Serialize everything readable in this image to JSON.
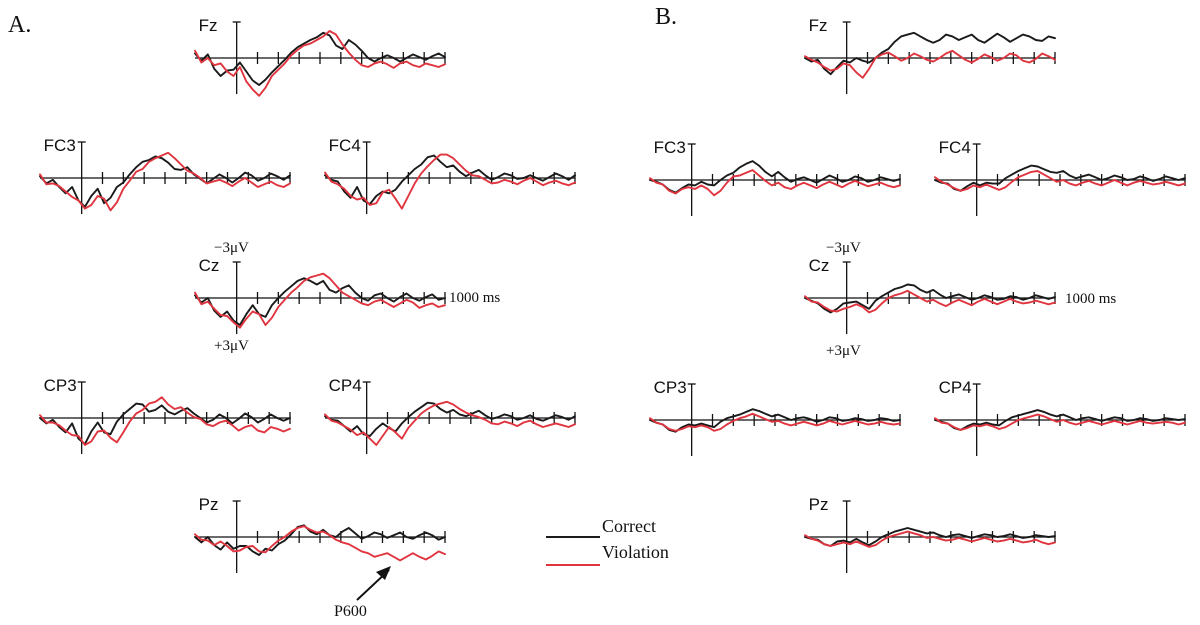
{
  "panels": [
    {
      "id": "A",
      "label": "A."
    },
    {
      "id": "B",
      "label": "B."
    }
  ],
  "scale_labels": {
    "neg": "−3μV",
    "pos": "+3μV",
    "time": "1000 ms"
  },
  "annotation": {
    "label": "P600"
  },
  "legend": {
    "entries": [
      {
        "label": "Correct",
        "color": "#1a1a1a"
      },
      {
        "label": "Violation",
        "color": "#e0353f"
      }
    ]
  },
  "colors": {
    "correct": "#1a1a1a",
    "violation": "#e0353f",
    "axis": "#111111"
  },
  "chart_data": {
    "type": "line",
    "x_unit": "ms",
    "y_unit": "μV",
    "negative_up": true,
    "time_range": [
      -200,
      1000
    ],
    "scale_uV": 3,
    "series_names": [
      "Correct",
      "Violation"
    ],
    "channels": [
      {
        "panel": "A",
        "name": "Fz",
        "correct": [
          -0.5,
          0.3,
          -0.4,
          1.2,
          2.0,
          1.4,
          1.3,
          0.5,
          1.5,
          2.5,
          3.0,
          2.4,
          1.6,
          0.9,
          0.2,
          -0.6,
          -1.2,
          -1.6,
          -2.0,
          -2.3,
          -2.8,
          -2.5,
          -1.4,
          -1.0,
          -2.0,
          -1.5,
          -0.8,
          0.0,
          0.4,
          0.0,
          -0.3,
          0.0,
          0.4,
          0.0,
          -0.4,
          -0.1,
          0.2,
          -0.2,
          -0.5,
          -0.1
        ],
        "violation": [
          -0.8,
          0.5,
          0.0,
          0.8,
          0.6,
          1.5,
          2.0,
          1.0,
          2.6,
          3.5,
          4.2,
          3.3,
          2.0,
          1.3,
          0.6,
          -0.3,
          -0.9,
          -1.4,
          -1.6,
          -2.0,
          -2.4,
          -3.0,
          -2.6,
          -1.5,
          -0.6,
          0.2,
          0.8,
          1.0,
          0.6,
          0.4,
          0.7,
          1.1,
          0.6,
          0.4,
          0.8,
          1.0,
          0.6,
          0.8,
          1.0,
          0.7
        ]
      },
      {
        "panel": "A",
        "name": "FC3",
        "correct": [
          -0.2,
          0.6,
          0.2,
          1.0,
          1.7,
          1.0,
          2.5,
          3.2,
          2.0,
          1.2,
          2.8,
          2.2,
          1.0,
          0.5,
          -0.4,
          -1.2,
          -1.8,
          -2.0,
          -2.4,
          -2.2,
          -1.7,
          -1.0,
          -0.9,
          -1.2,
          -0.4,
          0.1,
          0.6,
          0.1,
          -0.4,
          0.0,
          0.5,
          0.0,
          -0.6,
          -0.3,
          0.3,
          0.0,
          -0.5,
          -0.2,
          0.2,
          -0.3
        ],
        "violation": [
          -0.4,
          0.7,
          0.6,
          0.9,
          1.5,
          2.1,
          2.5,
          3.4,
          3.0,
          2.0,
          2.3,
          3.6,
          2.7,
          1.2,
          0.3,
          -0.7,
          -1.0,
          -1.8,
          -2.2,
          -2.5,
          -2.8,
          -2.2,
          -1.5,
          -0.8,
          -0.5,
          0.0,
          0.6,
          0.4,
          0.2,
          0.5,
          0.9,
          0.4,
          0.0,
          0.5,
          1.0,
          0.7,
          0.4,
          0.8,
          1.0,
          0.6
        ]
      },
      {
        "panel": "A",
        "name": "FC4",
        "correct": [
          -0.3,
          0.2,
          0.4,
          1.5,
          2.2,
          1.0,
          2.5,
          2.9,
          2.0,
          1.5,
          1.7,
          1.3,
          0.4,
          -0.3,
          -1.0,
          -1.5,
          -2.3,
          -2.5,
          -1.8,
          -1.2,
          -1.4,
          -0.7,
          -0.2,
          -0.6,
          -0.9,
          -0.3,
          0.2,
          -0.1,
          -0.5,
          -0.3,
          0.1,
          0.0,
          -0.3,
          0.0,
          0.3,
          -0.1,
          -0.5,
          -0.2,
          0.2,
          -0.3
        ],
        "violation": [
          -0.6,
          0.4,
          0.7,
          1.2,
          2.0,
          2.4,
          2.2,
          3.0,
          2.8,
          1.6,
          1.3,
          2.3,
          3.4,
          2.0,
          0.6,
          -0.5,
          -1.3,
          -2.0,
          -2.6,
          -2.6,
          -2.2,
          -1.5,
          -0.8,
          -0.3,
          -0.2,
          0.2,
          0.6,
          0.5,
          0.2,
          0.4,
          0.7,
          0.3,
          0.0,
          0.4,
          0.8,
          0.5,
          0.3,
          0.6,
          0.8,
          0.5
        ]
      },
      {
        "panel": "A",
        "name": "Cz",
        "correct": [
          -0.3,
          0.5,
          0.0,
          1.4,
          2.1,
          1.5,
          2.5,
          3.0,
          1.8,
          0.8,
          1.8,
          2.1,
          0.8,
          0.0,
          -0.7,
          -1.3,
          -1.9,
          -2.2,
          -1.9,
          -1.5,
          -1.9,
          -0.9,
          -0.6,
          -1.1,
          -1.4,
          -0.6,
          0.0,
          0.3,
          -0.3,
          -0.5,
          0.0,
          0.4,
          -0.1,
          -0.5,
          0.0,
          0.3,
          -0.1,
          -0.4,
          0.2,
          0.0
        ],
        "violation": [
          -0.6,
          0.7,
          0.4,
          1.2,
          1.9,
          2.0,
          2.7,
          3.3,
          2.3,
          1.5,
          1.8,
          3.0,
          2.2,
          1.0,
          0.2,
          -0.6,
          -1.2,
          -1.9,
          -2.3,
          -2.5,
          -2.7,
          -2.2,
          -1.4,
          -0.6,
          -0.2,
          0.2,
          0.6,
          0.8,
          0.4,
          0.2,
          0.6,
          1.0,
          0.6,
          0.2,
          0.5,
          1.1,
          0.8,
          0.6,
          1.0,
          0.8
        ]
      },
      {
        "panel": "A",
        "name": "CP3",
        "correct": [
          0.0,
          0.6,
          0.2,
          1.0,
          1.6,
          0.6,
          2.3,
          2.9,
          1.5,
          0.5,
          1.6,
          1.8,
          0.4,
          -0.4,
          -1.0,
          -1.6,
          -1.5,
          -0.7,
          -0.9,
          -1.4,
          -0.7,
          -0.4,
          -0.8,
          -1.1,
          -0.5,
          0.0,
          0.5,
          0.2,
          -0.4,
          0.0,
          0.6,
          0.1,
          -0.5,
          -0.1,
          0.5,
          0.1,
          -0.4,
          0.0,
          0.3,
          0.0
        ],
        "violation": [
          -0.3,
          0.5,
          0.5,
          0.8,
          1.4,
          1.9,
          2.0,
          3.0,
          2.6,
          1.5,
          1.4,
          2.2,
          2.7,
          1.6,
          0.4,
          -0.5,
          -0.9,
          -1.6,
          -1.8,
          -2.3,
          -1.5,
          -1.0,
          -1.2,
          -0.6,
          -0.1,
          0.1,
          0.7,
          0.9,
          0.5,
          0.3,
          0.8,
          1.4,
          1.0,
          0.8,
          1.4,
          1.6,
          1.0,
          1.2,
          1.5,
          1.2
        ]
      },
      {
        "panel": "A",
        "name": "CP4",
        "correct": [
          -0.2,
          0.2,
          0.3,
          0.9,
          1.5,
          0.9,
          1.8,
          2.0,
          1.2,
          0.6,
          1.1,
          1.5,
          0.6,
          -0.1,
          -0.7,
          -1.2,
          -1.7,
          -1.6,
          -1.0,
          -0.6,
          -0.9,
          -0.4,
          -0.2,
          -0.5,
          -0.8,
          -0.3,
          0.1,
          -0.1,
          -0.4,
          -0.2,
          0.2,
          0.0,
          -0.3,
          0.1,
          0.3,
          0.0,
          -0.3,
          -0.1,
          0.2,
          -0.2
        ],
        "violation": [
          -0.4,
          0.3,
          0.5,
          0.9,
          1.3,
          1.9,
          1.6,
          2.3,
          3.0,
          2.0,
          1.0,
          1.6,
          2.3,
          1.1,
          0.3,
          -0.5,
          -1.0,
          -1.4,
          -1.6,
          -1.8,
          -1.5,
          -1.0,
          -0.6,
          -0.3,
          -0.1,
          0.2,
          0.6,
          0.7,
          0.4,
          0.6,
          0.9,
          0.5,
          0.3,
          0.7,
          1.0,
          0.8,
          0.6,
          0.8,
          1.0,
          0.7
        ]
      },
      {
        "panel": "A",
        "name": "Pz",
        "correct": [
          0.0,
          0.6,
          0.0,
          0.9,
          1.4,
          0.6,
          1.3,
          1.0,
          1.0,
          1.6,
          2.0,
          1.3,
          1.5,
          0.8,
          0.4,
          -0.3,
          -1.1,
          -1.3,
          -0.6,
          -0.3,
          -0.8,
          -0.2,
          0.0,
          -0.6,
          -1.0,
          -0.4,
          0.2,
          -0.1,
          -0.5,
          -0.3,
          0.1,
          -0.2,
          -0.5,
          0.0,
          0.2,
          -0.2,
          -0.5,
          -0.2,
          0.3,
          0.0
        ],
        "violation": [
          -0.3,
          0.3,
          0.4,
          0.9,
          0.5,
          1.0,
          1.6,
          1.5,
          1.1,
          1.0,
          1.6,
          1.7,
          1.0,
          0.4,
          0.0,
          -0.6,
          -1.0,
          -1.2,
          -0.8,
          -0.5,
          -0.6,
          -0.2,
          0.3,
          0.6,
          0.8,
          1.2,
          1.6,
          1.8,
          2.2,
          2.0,
          1.8,
          2.2,
          2.6,
          2.2,
          1.8,
          2.2,
          2.5,
          2.1,
          1.6,
          1.9
        ]
      },
      {
        "panel": "B",
        "name": "Fz",
        "correct": [
          0.0,
          0.4,
          0.2,
          1.2,
          1.8,
          1.0,
          0.3,
          0.5,
          0.0,
          0.3,
          0.5,
          0.0,
          -0.6,
          -1.0,
          -1.8,
          -2.4,
          -2.6,
          -2.8,
          -2.4,
          -2.0,
          -1.7,
          -2.0,
          -2.6,
          -2.4,
          -2.0,
          -2.3,
          -2.6,
          -2.0,
          -1.7,
          -2.2,
          -2.7,
          -2.3,
          -1.8,
          -2.2,
          -2.6,
          -2.4,
          -2.0,
          -1.9,
          -2.4,
          -2.2
        ],
        "violation": [
          -0.2,
          0.2,
          0.5,
          1.0,
          1.4,
          1.2,
          0.6,
          0.8,
          1.6,
          2.2,
          1.2,
          0.0,
          -0.4,
          -0.6,
          -0.2,
          0.3,
          0.0,
          -0.5,
          -0.2,
          0.2,
          0.4,
          0.0,
          -0.5,
          -0.8,
          -0.3,
          0.2,
          0.5,
          0.1,
          -0.4,
          -0.1,
          0.3,
          0.0,
          -0.5,
          -0.3,
          0.3,
          0.5,
          0.1,
          -0.5,
          -0.2,
          0.2
        ]
      },
      {
        "panel": "B",
        "name": "FC3",
        "correct": [
          0.0,
          0.2,
          0.5,
          1.1,
          1.4,
          0.9,
          0.5,
          0.6,
          0.2,
          0.5,
          0.6,
          0.0,
          -0.5,
          -0.8,
          -1.4,
          -1.8,
          -2.1,
          -1.6,
          -0.9,
          -0.4,
          -0.9,
          -0.3,
          0.2,
          -0.1,
          -0.3,
          0.0,
          0.3,
          -0.1,
          -0.5,
          -0.2,
          0.2,
          0.0,
          -0.4,
          -0.2,
          0.2,
          0.0,
          -0.3,
          -0.1,
          0.1,
          -0.1
        ],
        "violation": [
          -0.2,
          0.3,
          0.5,
          1.2,
          1.5,
          1.0,
          0.8,
          1.0,
          0.6,
          1.0,
          1.7,
          1.2,
          0.3,
          -0.4,
          -0.5,
          -0.8,
          -1.1,
          -0.5,
          0.1,
          0.6,
          0.3,
          0.8,
          1.0,
          0.6,
          0.3,
          0.6,
          0.9,
          0.5,
          0.2,
          0.5,
          0.8,
          0.4,
          0.1,
          0.4,
          0.7,
          0.5,
          0.3,
          0.6,
          0.8,
          0.6
        ]
      },
      {
        "panel": "B",
        "name": "FC4",
        "correct": [
          0.0,
          0.3,
          0.4,
          1.0,
          1.2,
          0.7,
          0.3,
          0.6,
          0.3,
          0.4,
          0.4,
          -0.2,
          -0.6,
          -1.0,
          -1.3,
          -1.6,
          -1.5,
          -1.2,
          -0.9,
          -0.8,
          -1.0,
          -0.5,
          -0.2,
          -0.4,
          -0.6,
          -0.3,
          0.0,
          -0.2,
          -0.5,
          -0.3,
          0.0,
          -0.1,
          -0.4,
          -0.2,
          0.1,
          -0.1,
          -0.4,
          -0.2,
          0.0,
          -0.2
        ],
        "violation": [
          -0.3,
          0.2,
          0.5,
          0.9,
          1.2,
          1.0,
          0.6,
          0.8,
          0.5,
          0.8,
          1.1,
          0.8,
          0.2,
          -0.3,
          -0.6,
          -0.9,
          -1.0,
          -0.6,
          -0.2,
          0.2,
          0.0,
          0.4,
          0.6,
          0.3,
          0.1,
          0.4,
          0.6,
          0.3,
          0.0,
          0.3,
          0.6,
          0.3,
          0.1,
          0.3,
          0.5,
          0.4,
          0.2,
          0.4,
          0.6,
          0.4
        ]
      },
      {
        "panel": "B",
        "name": "Cz",
        "correct": [
          0.0,
          0.3,
          0.6,
          1.2,
          1.6,
          1.2,
          0.6,
          0.5,
          0.4,
          0.8,
          1.2,
          0.3,
          -0.2,
          -0.6,
          -1.0,
          -1.2,
          -1.5,
          -1.4,
          -0.9,
          -0.6,
          -0.9,
          -0.4,
          0.0,
          -0.2,
          -0.4,
          -0.1,
          0.2,
          0.0,
          -0.3,
          -0.1,
          0.2,
          0.1,
          -0.2,
          -0.1,
          0.2,
          0.0,
          -0.3,
          -0.1,
          0.1,
          -0.1
        ],
        "violation": [
          -0.2,
          0.4,
          0.5,
          1.0,
          1.4,
          1.5,
          1.2,
          1.0,
          0.7,
          1.0,
          1.6,
          1.3,
          0.6,
          0.0,
          -0.3,
          -0.5,
          -0.8,
          -0.4,
          0.0,
          0.4,
          0.2,
          0.6,
          0.9,
          0.5,
          0.2,
          0.5,
          0.8,
          0.4,
          0.1,
          0.4,
          0.7,
          0.4,
          0.1,
          0.4,
          0.6,
          0.5,
          0.3,
          0.5,
          0.7,
          0.5
        ]
      },
      {
        "panel": "B",
        "name": "CP3",
        "correct": [
          0.0,
          0.3,
          0.5,
          1.1,
          1.3,
          0.8,
          0.5,
          0.6,
          0.4,
          0.6,
          0.8,
          0.2,
          -0.2,
          -0.4,
          -0.6,
          -0.9,
          -1.2,
          -1.0,
          -0.7,
          -0.4,
          -0.6,
          -0.3,
          0.0,
          -0.2,
          -0.3,
          -0.1,
          0.2,
          0.0,
          -0.3,
          -0.2,
          0.1,
          0.0,
          -0.2,
          -0.1,
          0.1,
          0.0,
          -0.2,
          -0.1,
          0.1,
          0.0
        ],
        "violation": [
          -0.2,
          0.3,
          0.5,
          1.0,
          1.2,
          1.0,
          0.7,
          0.8,
          0.6,
          0.8,
          1.2,
          1.0,
          0.5,
          0.1,
          -0.2,
          -0.4,
          -0.7,
          -0.4,
          -0.1,
          0.2,
          0.1,
          0.4,
          0.6,
          0.4,
          0.2,
          0.4,
          0.6,
          0.4,
          0.1,
          0.3,
          0.5,
          0.3,
          0.1,
          0.3,
          0.5,
          0.4,
          0.2,
          0.4,
          0.5,
          0.4
        ]
      },
      {
        "panel": "B",
        "name": "CP4",
        "correct": [
          0.0,
          0.2,
          0.4,
          0.9,
          1.1,
          0.7,
          0.4,
          0.5,
          0.3,
          0.5,
          0.6,
          0.1,
          -0.3,
          -0.5,
          -0.7,
          -0.9,
          -1.1,
          -0.9,
          -0.6,
          -0.4,
          -0.6,
          -0.3,
          0.0,
          -0.2,
          -0.3,
          -0.1,
          0.1,
          -0.1,
          -0.3,
          -0.2,
          0.1,
          0.0,
          -0.2,
          -0.1,
          0.1,
          0.0,
          -0.2,
          -0.1,
          0.0,
          -0.1
        ],
        "violation": [
          -0.2,
          0.3,
          0.4,
          0.8,
          1.1,
          0.9,
          0.6,
          0.7,
          0.5,
          0.7,
          1.0,
          0.8,
          0.4,
          0.0,
          -0.2,
          -0.4,
          -0.6,
          -0.4,
          -0.1,
          0.2,
          0.0,
          0.3,
          0.5,
          0.3,
          0.1,
          0.3,
          0.5,
          0.3,
          0.1,
          0.3,
          0.5,
          0.3,
          0.1,
          0.3,
          0.4,
          0.3,
          0.2,
          0.3,
          0.5,
          0.3
        ]
      },
      {
        "panel": "B",
        "name": "Pz",
        "correct": [
          0.0,
          0.2,
          0.3,
          0.8,
          1.0,
          0.5,
          0.4,
          0.6,
          0.2,
          0.6,
          0.9,
          0.5,
          0.0,
          -0.3,
          -0.6,
          -0.8,
          -1.0,
          -0.8,
          -0.6,
          -0.4,
          -0.5,
          -0.2,
          0.0,
          -0.2,
          -0.3,
          -0.1,
          0.1,
          -0.1,
          -0.3,
          -0.2,
          0.0,
          -0.1,
          -0.3,
          -0.1,
          0.1,
          0.0,
          -0.2,
          -0.1,
          0.0,
          -0.1
        ],
        "violation": [
          -0.2,
          0.2,
          0.4,
          0.8,
          1.0,
          0.8,
          0.6,
          0.8,
          0.5,
          0.8,
          1.1,
          0.9,
          0.4,
          0.0,
          -0.2,
          -0.4,
          -0.6,
          -0.4,
          -0.2,
          0.1,
          0.0,
          0.2,
          0.4,
          0.3,
          0.1,
          0.3,
          0.5,
          0.3,
          0.1,
          0.3,
          0.5,
          0.4,
          0.2,
          0.4,
          0.6,
          0.5,
          0.3,
          0.6,
          0.8,
          0.6
        ]
      }
    ]
  }
}
